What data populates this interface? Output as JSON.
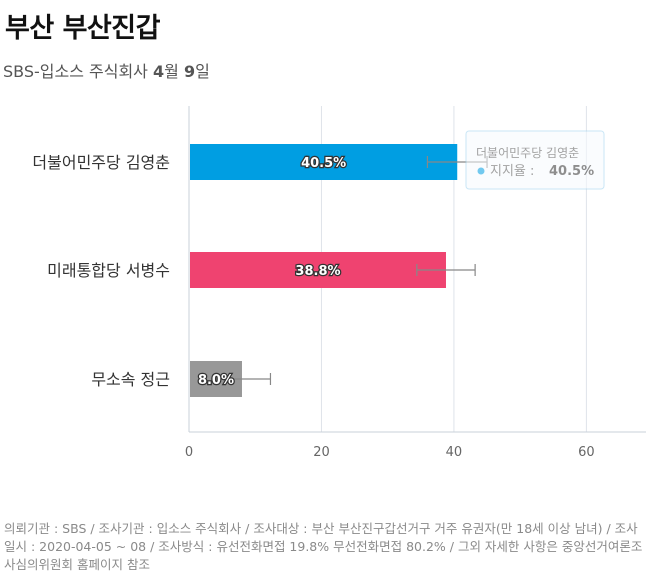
{
  "header": {
    "title": "부산 부산진갑",
    "subtitle_prefix": "SBS-",
    "subtitle_main": "입소스 주식회사 ",
    "subtitle_month": "4",
    "subtitle_month_unit": "월 ",
    "subtitle_day": "9",
    "subtitle_day_unit": "일"
  },
  "chart_data": {
    "type": "bar",
    "orientation": "horizontal",
    "categories": [
      "더불어민주당 김영춘",
      "미래통합당 서병수",
      "무소속 정근"
    ],
    "values": [
      40.5,
      38.8,
      8.0
    ],
    "labels": [
      "40.5%",
      "38.8%",
      "8.0%"
    ],
    "colors": [
      "#009ee2",
      "#ef4370",
      "#989898"
    ],
    "error_bars": [
      [
        36.0,
        45.0
      ],
      [
        34.4,
        43.2
      ],
      [
        5.4,
        12.3
      ]
    ],
    "xlim": [
      0,
      69
    ],
    "xticks": [
      "0",
      "20",
      "40",
      "60"
    ],
    "xtick_values": [
      0,
      20,
      40,
      60
    ],
    "grid": true,
    "tooltip": {
      "title": "더불어민주당 김영춘",
      "label": "지지율 : ",
      "value": "40.5%",
      "color": "#009ee2"
    }
  },
  "footer": {
    "text": "의뢰기관 : SBS / 조사기관 : 입소스 주식회사 / 조사대상 : 부산 부산진구갑선거구 거주 유권자(만 18세 이상 남녀) / 조사일시 : 2020-04-05 ~ 08 / 조사방식 : 유선전화면접 19.8% 무선전화면접 80.2% / 그외 자세한 사항은 중앙선거여론조사심의위원회 홈페이지 참조"
  }
}
